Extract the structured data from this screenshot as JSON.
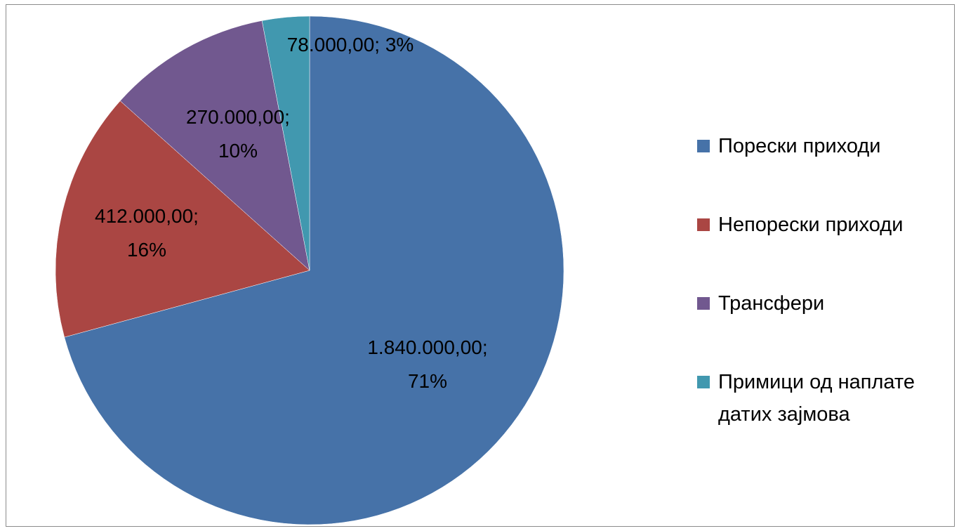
{
  "chart_data": {
    "type": "pie",
    "title": "",
    "start_angle_deg": 0,
    "direction": "clockwise",
    "legend_position": "right",
    "slices": [
      {
        "name": "Порески приходи",
        "value": 1840000,
        "value_label": "1.840.000,00;",
        "percent_label": "71%",
        "color": "#4672A8"
      },
      {
        "name": "Непорески приходи",
        "value": 412000,
        "value_label": "412.000,00;",
        "percent_label": "16%",
        "color": "#AA4643"
      },
      {
        "name": "Трансфери",
        "value": 270000,
        "value_label": "270.000,00;",
        "percent_label": "10%",
        "color": "#71588F"
      },
      {
        "name": "Примици од наплате датих зајмова",
        "value": 78000,
        "value_label": "78.000,00; 3%",
        "percent_label": "",
        "color": "#4198AF"
      }
    ],
    "legend": [
      {
        "line1": "Порески приходи",
        "line2": ""
      },
      {
        "line1": "Непорески приходи",
        "line2": ""
      },
      {
        "line1": "Трансфери",
        "line2": ""
      },
      {
        "line1": "Примици од наплате",
        "line2": "датих зајмова"
      }
    ]
  }
}
